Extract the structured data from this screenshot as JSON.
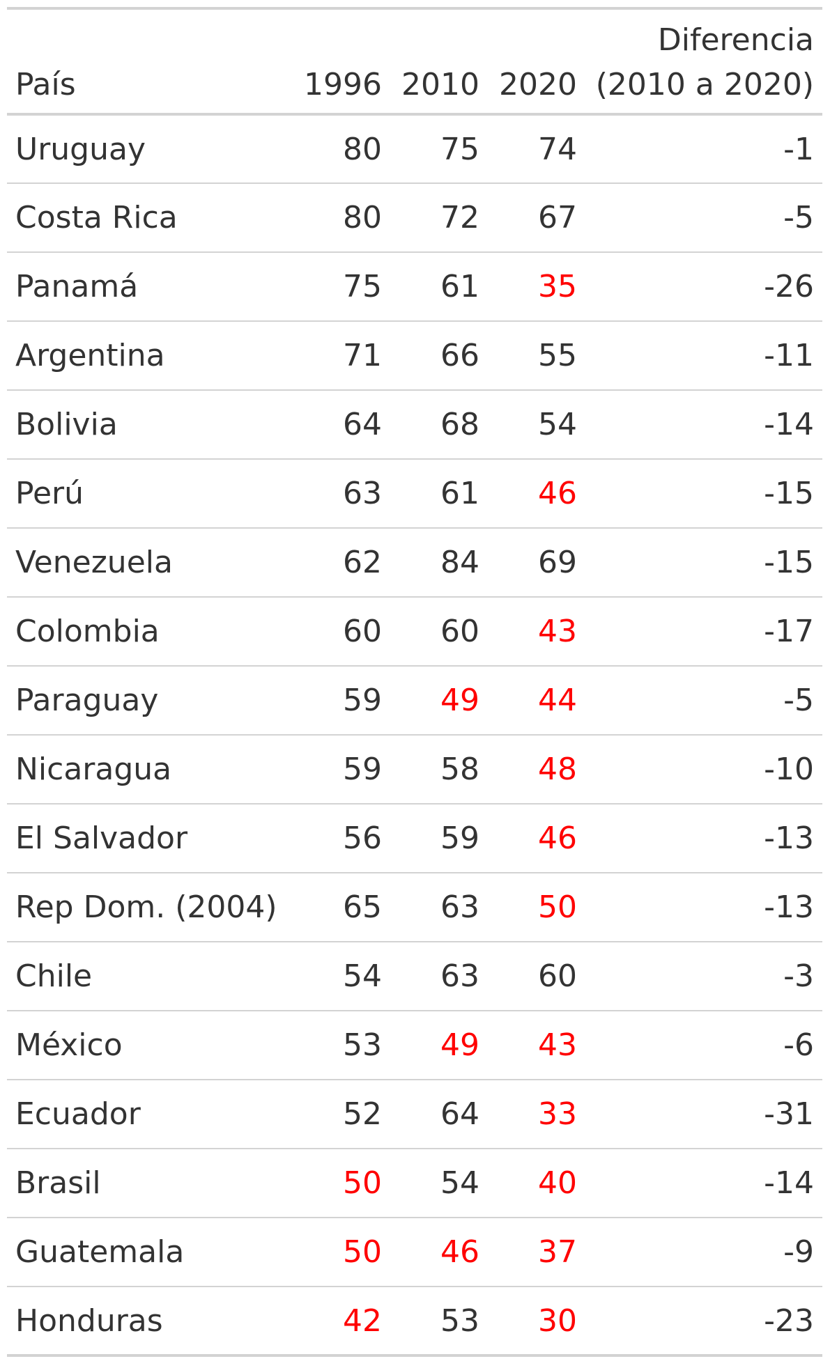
{
  "table": {
    "headers": {
      "country": "País",
      "y1996": "1996",
      "y2010": "2010",
      "y2020": "2020",
      "diff_line1": "Diferencia",
      "diff_line2": "(2010 a 2020)"
    },
    "highlight_color": "#ff0000",
    "text_color": "#333333",
    "rows": [
      {
        "country": "Uruguay",
        "y1996": "80",
        "y2010": "75",
        "y2020": "74",
        "diff": "-1",
        "low": [
          false,
          false,
          false
        ]
      },
      {
        "country": "Costa Rica",
        "y1996": "80",
        "y2010": "72",
        "y2020": "67",
        "diff": "-5",
        "low": [
          false,
          false,
          false
        ]
      },
      {
        "country": "Panamá",
        "y1996": "75",
        "y2010": "61",
        "y2020": "35",
        "diff": "-26",
        "low": [
          false,
          false,
          true
        ]
      },
      {
        "country": "Argentina",
        "y1996": "71",
        "y2010": "66",
        "y2020": "55",
        "diff": "-11",
        "low": [
          false,
          false,
          false
        ]
      },
      {
        "country": "Bolivia",
        "y1996": "64",
        "y2010": "68",
        "y2020": "54",
        "diff": "-14",
        "low": [
          false,
          false,
          false
        ]
      },
      {
        "country": "Perú",
        "y1996": "63",
        "y2010": "61",
        "y2020": "46",
        "diff": "-15",
        "low": [
          false,
          false,
          true
        ]
      },
      {
        "country": "Venezuela",
        "y1996": "62",
        "y2010": "84",
        "y2020": "69",
        "diff": "-15",
        "low": [
          false,
          false,
          false
        ]
      },
      {
        "country": "Colombia",
        "y1996": "60",
        "y2010": "60",
        "y2020": "43",
        "diff": "-17",
        "low": [
          false,
          false,
          true
        ]
      },
      {
        "country": "Paraguay",
        "y1996": "59",
        "y2010": "49",
        "y2020": "44",
        "diff": "-5",
        "low": [
          false,
          true,
          true
        ]
      },
      {
        "country": "Nicaragua",
        "y1996": "59",
        "y2010": "58",
        "y2020": "48",
        "diff": "-10",
        "low": [
          false,
          false,
          true
        ]
      },
      {
        "country": "El Salvador",
        "y1996": "56",
        "y2010": "59",
        "y2020": "46",
        "diff": "-13",
        "low": [
          false,
          false,
          true
        ]
      },
      {
        "country": "Rep Dom. (2004)",
        "y1996": "65",
        "y2010": "63",
        "y2020": "50",
        "diff": "-13",
        "low": [
          false,
          false,
          true
        ]
      },
      {
        "country": "Chile",
        "y1996": "54",
        "y2010": "63",
        "y2020": "60",
        "diff": "-3",
        "low": [
          false,
          false,
          false
        ]
      },
      {
        "country": "México",
        "y1996": "53",
        "y2010": "49",
        "y2020": "43",
        "diff": "-6",
        "low": [
          false,
          true,
          true
        ]
      },
      {
        "country": "Ecuador",
        "y1996": "52",
        "y2010": "64",
        "y2020": "33",
        "diff": "-31",
        "low": [
          false,
          false,
          true
        ]
      },
      {
        "country": "Brasil",
        "y1996": "50",
        "y2010": "54",
        "y2020": "40",
        "diff": "-14",
        "low": [
          true,
          false,
          true
        ]
      },
      {
        "country": "Guatemala",
        "y1996": "50",
        "y2010": "46",
        "y2020": "37",
        "diff": "-9",
        "low": [
          true,
          true,
          true
        ]
      },
      {
        "country": "Honduras",
        "y1996": "42",
        "y2010": "53",
        "y2020": "30",
        "diff": "-23",
        "low": [
          true,
          false,
          true
        ]
      }
    ]
  }
}
